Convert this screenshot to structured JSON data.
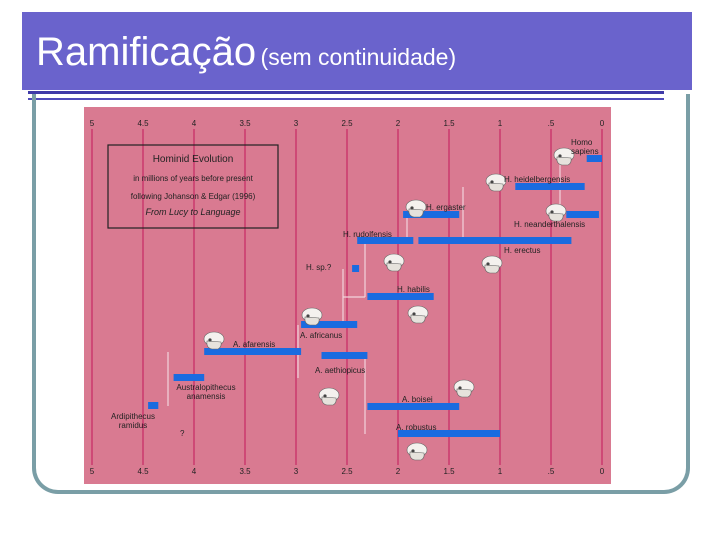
{
  "slide": {
    "title": "Ramificação",
    "subtitle": "(sem continuidade)"
  },
  "colors": {
    "title_bar": "#6a63cc",
    "chart_background": "#d97a91",
    "bar": "#1a6be0",
    "gridline": "#c2185b",
    "connector": "#f3d3dc"
  },
  "chart_data": {
    "type": "timeline",
    "title": "Hominid Evolution",
    "legend_lines": [
      "in millions of years before present",
      "following Johanson & Edgar (1996)",
      "From Lucy to Language"
    ],
    "axis_ticks_top": [
      "5",
      "4.5",
      "4",
      "3.5",
      "3",
      "2.5",
      "2",
      "1.5",
      "1",
      ".5",
      "0"
    ],
    "axis_ticks_bottom": [
      "5",
      "4.5",
      "4",
      "3.5",
      "3",
      "2.5",
      "2",
      "1.5",
      "1",
      ".5",
      "0"
    ],
    "xlim": [
      5,
      0
    ],
    "question_mark": "?",
    "species": [
      {
        "name": "Homo sapiens",
        "start": 0.15,
        "end": 0.0,
        "skull": true
      },
      {
        "name": "H. heidelbergensis",
        "start": 0.85,
        "end": 0.17,
        "skull": true
      },
      {
        "name": "H. ergaster",
        "start": 1.95,
        "end": 1.4,
        "skull": true
      },
      {
        "name": "H. neanderthalensis",
        "start": 0.35,
        "end": 0.03,
        "skull": true
      },
      {
        "name": "H. rudolfensis",
        "start": 2.4,
        "end": 1.85,
        "skull": true
      },
      {
        "name": "H. erectus",
        "start": 1.8,
        "end": 0.3,
        "skull": true
      },
      {
        "name": "H. sp.?",
        "start": 2.45,
        "end": 2.45,
        "skull": false
      },
      {
        "name": "H. habilis",
        "start": 2.3,
        "end": 1.65,
        "skull": true
      },
      {
        "name": "A. africanus",
        "start": 2.95,
        "end": 2.4,
        "skull": true
      },
      {
        "name": "A. afarensis",
        "start": 3.9,
        "end": 2.95,
        "skull": true
      },
      {
        "name": "A. aethiopicus",
        "start": 2.75,
        "end": 2.3,
        "skull": true
      },
      {
        "name": "Australopithecus anamensis",
        "start": 4.2,
        "end": 3.9,
        "skull": false
      },
      {
        "name": "A. boisei",
        "start": 2.3,
        "end": 1.4,
        "skull": true
      },
      {
        "name": "Ardipithecus ramidus",
        "start": 4.45,
        "end": 4.35,
        "skull": false
      },
      {
        "name": "A. robustus",
        "start": 2.0,
        "end": 1.0,
        "skull": true
      }
    ]
  }
}
